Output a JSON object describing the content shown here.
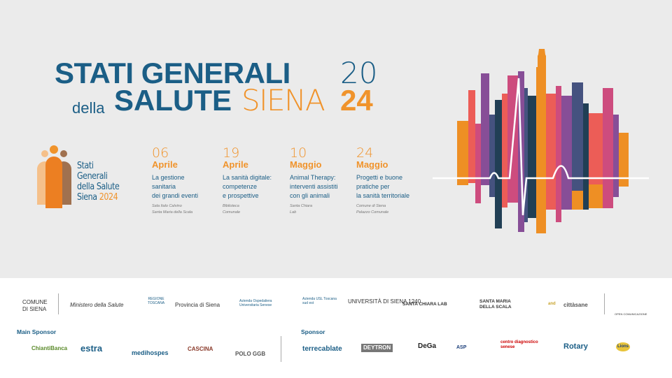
{
  "title": {
    "line1": "STATI GENERALI",
    "year_top": "20",
    "della": "della",
    "salute": "SALUTE",
    "siena": "SIENA",
    "year_bottom": "24"
  },
  "colors": {
    "blue": "#1b5e86",
    "orange": "#f0932b",
    "background": "#ebebeb"
  },
  "logo": {
    "lines": [
      "Stati",
      "Generali",
      "della Salute"
    ],
    "siena": "Siena",
    "year": "2024"
  },
  "events": [
    {
      "day": "06",
      "month": "Aprile",
      "title": [
        "La gestione",
        "sanitaria",
        "dei grandi  eventi"
      ],
      "place": [
        "Sala Italo Calvino",
        "Santa Maria della Scala"
      ]
    },
    {
      "day": "19",
      "month": "Aprile",
      "title": [
        "La sanità digitale:",
        "competenze",
        "e prospettive"
      ],
      "place": [
        "Biblioteca",
        "Comunale"
      ]
    },
    {
      "day": "10",
      "month": "Maggio",
      "title": [
        "Animal Therapy:",
        "interventi assistiti",
        "con gli animali"
      ],
      "place": [
        "Santa Chiara",
        "Lab"
      ]
    },
    {
      "day": "24",
      "month": "Maggio",
      "title": [
        "Progetti e buone",
        "pratiche per",
        "la sanità territoriale"
      ],
      "place": [
        "Comune di Siena",
        "Palazzo Comunale"
      ]
    }
  ],
  "partners": [
    "COMUNE DI SIENA",
    "Ministero della Salute",
    "REGIONE TOSCANA",
    "Provincia di Siena",
    "Azienda Ospedaliera Universitaria Senese",
    "Azienda USL Toscana sud est",
    "UNIVERSITÀ DI SIENA 1240",
    "SANTA CHIARA LAB",
    "SANTA MARIA DELLA SCALA",
    "and",
    "cittàsane",
    "OPEN COMUNICAZIONE"
  ],
  "main_sponsor": {
    "label": "Main Sponsor",
    "items": [
      "ChiantiBanca",
      "estra",
      "medihospes",
      "CASCINA",
      "POLO GGB"
    ]
  },
  "sponsor": {
    "label": "Sponsor",
    "items": [
      "terrecablate",
      "DEYTRON",
      "DeGa",
      "ASP",
      "centro diagnostico senese",
      "Rotary",
      "Lions"
    ]
  }
}
